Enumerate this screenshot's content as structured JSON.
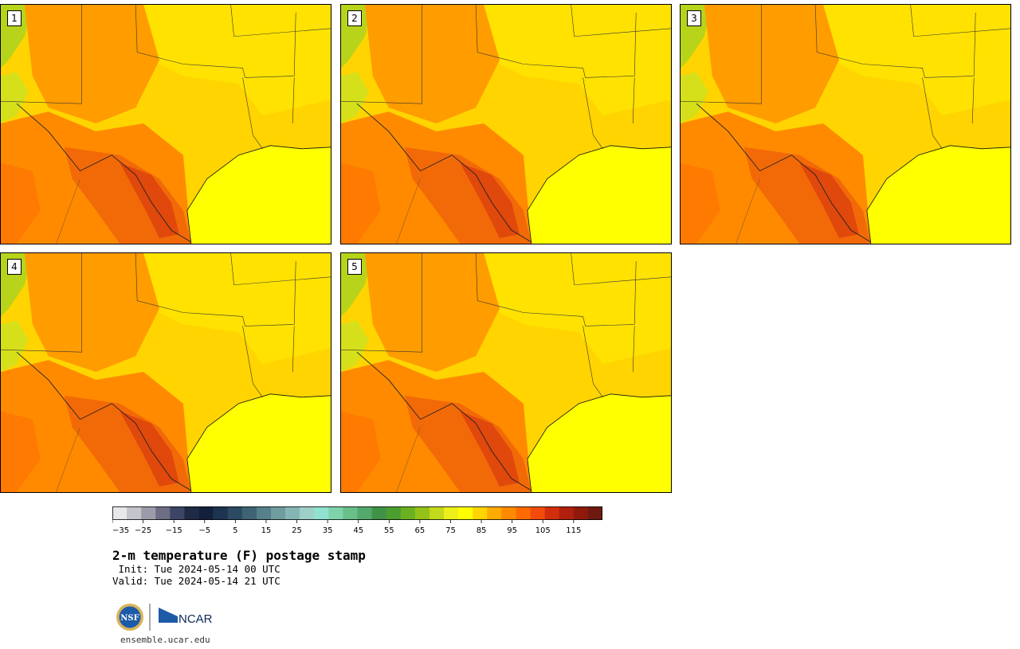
{
  "panels": [
    {
      "label": "1"
    },
    {
      "label": "2"
    },
    {
      "label": "3"
    },
    {
      "label": "4"
    },
    {
      "label": "5"
    }
  ],
  "colorbar": {
    "colors": [
      "#e8e8ea",
      "#c4c4cc",
      "#9b9baa",
      "#6d6d85",
      "#3d4566",
      "#1f2a45",
      "#12203b",
      "#1d3450",
      "#2c4a62",
      "#3e6374",
      "#56808a",
      "#6f9c9e",
      "#86b6b3",
      "#9fd0c8",
      "#8fe2cf",
      "#7fd3a8",
      "#69bf89",
      "#53a96b",
      "#3f9247",
      "#4c9e2e",
      "#6ab021",
      "#94c21a",
      "#c3d91b",
      "#ecef18",
      "#ffff00",
      "#ffd400",
      "#ffab00",
      "#ff8a00",
      "#ff6a00",
      "#f24b0c",
      "#d22e0e",
      "#b0200e",
      "#8f1a0c",
      "#6e1a10"
    ],
    "ticks": [
      "−35",
      "−25",
      "−15",
      "−5",
      "5",
      "15",
      "25",
      "35",
      "45",
      "55",
      "65",
      "75",
      "85",
      "95",
      "105",
      "115"
    ]
  },
  "title": "2-m temperature (F) postage stamp",
  "init": " Init: Tue 2024-05-14 00 UTC",
  "valid": "Valid: Tue 2024-05-14 21 UTC",
  "logos": {
    "nsf": "NSF",
    "ncar": "NCAR"
  },
  "site": "ensemble.ucar.edu"
}
